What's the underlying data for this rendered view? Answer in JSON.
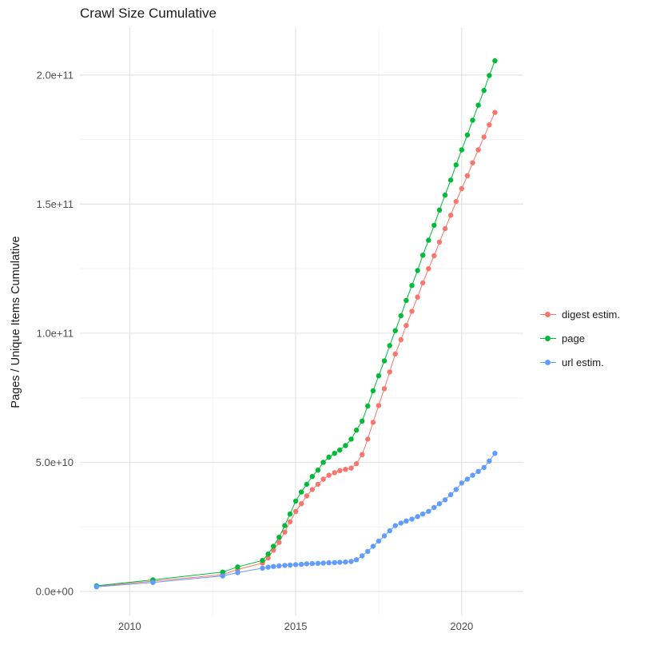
{
  "chart_data": {
    "type": "scatter",
    "title": "Crawl Size Cumulative",
    "xlabel": "",
    "ylabel": "Pages / Unique Items Cumulative",
    "legend_position": "right",
    "grid": true,
    "xlim": [
      2008.5,
      2021.86
    ],
    "ylim": [
      -9000000000,
      218000000000
    ],
    "y_unit": "values stored in billions (1e9)",
    "x_ticks": [
      {
        "v": 2010,
        "label": "2010"
      },
      {
        "v": 2015,
        "label": "2015"
      },
      {
        "v": 2020,
        "label": "2020"
      }
    ],
    "x_minor": [
      2012.5,
      2017.5
    ],
    "y_ticks": [
      {
        "v": 0,
        "label": "0.0e+00"
      },
      {
        "v": 50,
        "label": "5.0e+10"
      },
      {
        "v": 100,
        "label": "1.0e+11"
      },
      {
        "v": 150,
        "label": "1.5e+11"
      },
      {
        "v": 200,
        "label": "2.0e+11"
      }
    ],
    "y_minor": [
      25,
      75,
      125,
      175
    ],
    "series": [
      {
        "name": "digest estim.",
        "color": "#F8766D",
        "points": [
          [
            2009,
            2
          ],
          [
            2010.7,
            4
          ],
          [
            2012.8,
            6.5
          ],
          [
            2013.25,
            8.5
          ],
          [
            2014,
            11
          ],
          [
            2014.17,
            13
          ],
          [
            2014.33,
            16
          ],
          [
            2014.5,
            19
          ],
          [
            2014.67,
            23
          ],
          [
            2014.83,
            27
          ],
          [
            2015,
            31
          ],
          [
            2015.17,
            34
          ],
          [
            2015.33,
            37
          ],
          [
            2015.5,
            39.5
          ],
          [
            2015.67,
            41.5
          ],
          [
            2015.83,
            43.5
          ],
          [
            2016,
            45
          ],
          [
            2016.17,
            46
          ],
          [
            2016.33,
            46.8
          ],
          [
            2016.5,
            47.3
          ],
          [
            2016.67,
            47.8
          ],
          [
            2016.83,
            49.5
          ],
          [
            2017,
            53
          ],
          [
            2017.17,
            59
          ],
          [
            2017.33,
            65.5
          ],
          [
            2017.5,
            72
          ],
          [
            2017.67,
            78.5
          ],
          [
            2017.83,
            85
          ],
          [
            2018,
            92
          ],
          [
            2018.17,
            97.5
          ],
          [
            2018.33,
            103
          ],
          [
            2018.5,
            108.5
          ],
          [
            2018.67,
            114
          ],
          [
            2018.83,
            119.5
          ],
          [
            2019,
            125
          ],
          [
            2019.17,
            130
          ],
          [
            2019.33,
            135.3
          ],
          [
            2019.5,
            140.5
          ],
          [
            2019.67,
            145.7
          ],
          [
            2019.83,
            151
          ],
          [
            2020,
            156
          ],
          [
            2020.17,
            161
          ],
          [
            2020.33,
            166
          ],
          [
            2020.5,
            171
          ],
          [
            2020.67,
            176
          ],
          [
            2020.83,
            180.7
          ],
          [
            2021,
            185.5
          ]
        ]
      },
      {
        "name": "page",
        "color": "#00BA38",
        "points": [
          [
            2009,
            2.2
          ],
          [
            2010.7,
            4.5
          ],
          [
            2012.8,
            7.5
          ],
          [
            2013.25,
            9.5
          ],
          [
            2014,
            12
          ],
          [
            2014.17,
            14.5
          ],
          [
            2014.33,
            17.5
          ],
          [
            2014.5,
            21
          ],
          [
            2014.67,
            25.5
          ],
          [
            2014.83,
            30
          ],
          [
            2015,
            35
          ],
          [
            2015.17,
            38.5
          ],
          [
            2015.33,
            41.5
          ],
          [
            2015.5,
            44.5
          ],
          [
            2015.67,
            47
          ],
          [
            2015.83,
            50
          ],
          [
            2016,
            52
          ],
          [
            2016.17,
            53.5
          ],
          [
            2016.33,
            54.8
          ],
          [
            2016.5,
            56.5
          ],
          [
            2016.67,
            59
          ],
          [
            2016.83,
            62.5
          ],
          [
            2017,
            66
          ],
          [
            2017.17,
            71.8
          ],
          [
            2017.33,
            77.7
          ],
          [
            2017.5,
            83.5
          ],
          [
            2017.67,
            89.3
          ],
          [
            2017.83,
            95.2
          ],
          [
            2018,
            101
          ],
          [
            2018.17,
            106.8
          ],
          [
            2018.33,
            112.7
          ],
          [
            2018.5,
            118.5
          ],
          [
            2018.67,
            124.3
          ],
          [
            2018.83,
            130.2
          ],
          [
            2019,
            136
          ],
          [
            2019.17,
            141.8
          ],
          [
            2019.33,
            147.7
          ],
          [
            2019.5,
            153.5
          ],
          [
            2019.67,
            159.3
          ],
          [
            2019.83,
            165.2
          ],
          [
            2020,
            171
          ],
          [
            2020.17,
            176.8
          ],
          [
            2020.33,
            182.5
          ],
          [
            2020.5,
            188.3
          ],
          [
            2020.67,
            194
          ],
          [
            2020.83,
            199.8
          ],
          [
            2021,
            205.5
          ]
        ]
      },
      {
        "name": "url estim.",
        "color": "#619CFF",
        "points": [
          [
            2009,
            1.8
          ],
          [
            2010.7,
            3.5
          ],
          [
            2012.8,
            6
          ],
          [
            2013.25,
            7.3
          ],
          [
            2014,
            9
          ],
          [
            2014.17,
            9.4
          ],
          [
            2014.33,
            9.7
          ],
          [
            2014.5,
            9.9
          ],
          [
            2014.67,
            10.1
          ],
          [
            2014.83,
            10.2
          ],
          [
            2015,
            10.4
          ],
          [
            2015.17,
            10.5
          ],
          [
            2015.33,
            10.7
          ],
          [
            2015.5,
            10.8
          ],
          [
            2015.67,
            10.9
          ],
          [
            2015.83,
            11
          ],
          [
            2016,
            11.1
          ],
          [
            2016.17,
            11.2
          ],
          [
            2016.33,
            11.3
          ],
          [
            2016.5,
            11.4
          ],
          [
            2016.67,
            11.6
          ],
          [
            2016.83,
            12.3
          ],
          [
            2017,
            13.8
          ],
          [
            2017.17,
            15.5
          ],
          [
            2017.33,
            17.5
          ],
          [
            2017.5,
            19.5
          ],
          [
            2017.67,
            21.5
          ],
          [
            2017.83,
            23.5
          ],
          [
            2018,
            25.5
          ],
          [
            2018.17,
            26.5
          ],
          [
            2018.33,
            27.3
          ],
          [
            2018.5,
            28
          ],
          [
            2018.67,
            29
          ],
          [
            2018.83,
            30
          ],
          [
            2019,
            31
          ],
          [
            2019.17,
            32.5
          ],
          [
            2019.33,
            34
          ],
          [
            2019.5,
            35.5
          ],
          [
            2019.67,
            37.5
          ],
          [
            2019.83,
            39.5
          ],
          [
            2020,
            42
          ],
          [
            2020.17,
            43.5
          ],
          [
            2020.33,
            45
          ],
          [
            2020.5,
            46.5
          ],
          [
            2020.67,
            48
          ],
          [
            2020.83,
            50.5
          ],
          [
            2021,
            53.5
          ]
        ]
      }
    ]
  }
}
